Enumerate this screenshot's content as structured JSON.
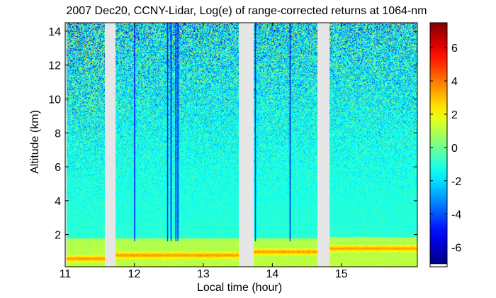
{
  "chart_data": {
    "type": "heatmap",
    "title": "2007 Dec20, CCNY-Lidar, Log(e) of range-corrected returns at 1064-nm",
    "xlabel": "Local time (hour)",
    "ylabel": "Altitude (km)",
    "xlim": [
      11,
      16.1
    ],
    "ylim": [
      0.1,
      14.5
    ],
    "x_ticks": [
      11,
      12,
      13,
      14,
      15
    ],
    "y_ticks": [
      2,
      4,
      6,
      8,
      10,
      12,
      14
    ],
    "colorbar": {
      "range": [
        -7,
        7.5
      ],
      "ticks": [
        -6,
        -4,
        -2,
        0,
        2,
        4,
        6
      ],
      "colormap": "jet"
    },
    "data_segments_hours": [
      [
        11.02,
        11.57
      ],
      [
        11.73,
        13.52
      ],
      [
        13.73,
        14.65
      ],
      [
        14.83,
        16.1
      ]
    ],
    "boundary_layer_top_km": [
      {
        "hour": 11.3,
        "value": 1.8
      },
      {
        "hour": 12.5,
        "value": 1.8
      },
      {
        "hour": 14.2,
        "value": 1.8
      },
      {
        "hour": 15.4,
        "value": 1.9
      }
    ],
    "aerosol_layer_peak_km": [
      {
        "hour": 11.3,
        "value": 0.6
      },
      {
        "hour": 12.6,
        "value": 0.8
      },
      {
        "hour": 14.1,
        "value": 1.0
      },
      {
        "hour": 15.4,
        "value": 1.2
      }
    ],
    "cloud_streaks_hours": [
      12.0,
      12.48,
      12.53,
      12.6,
      12.63,
      13.75,
      14.25
    ]
  }
}
